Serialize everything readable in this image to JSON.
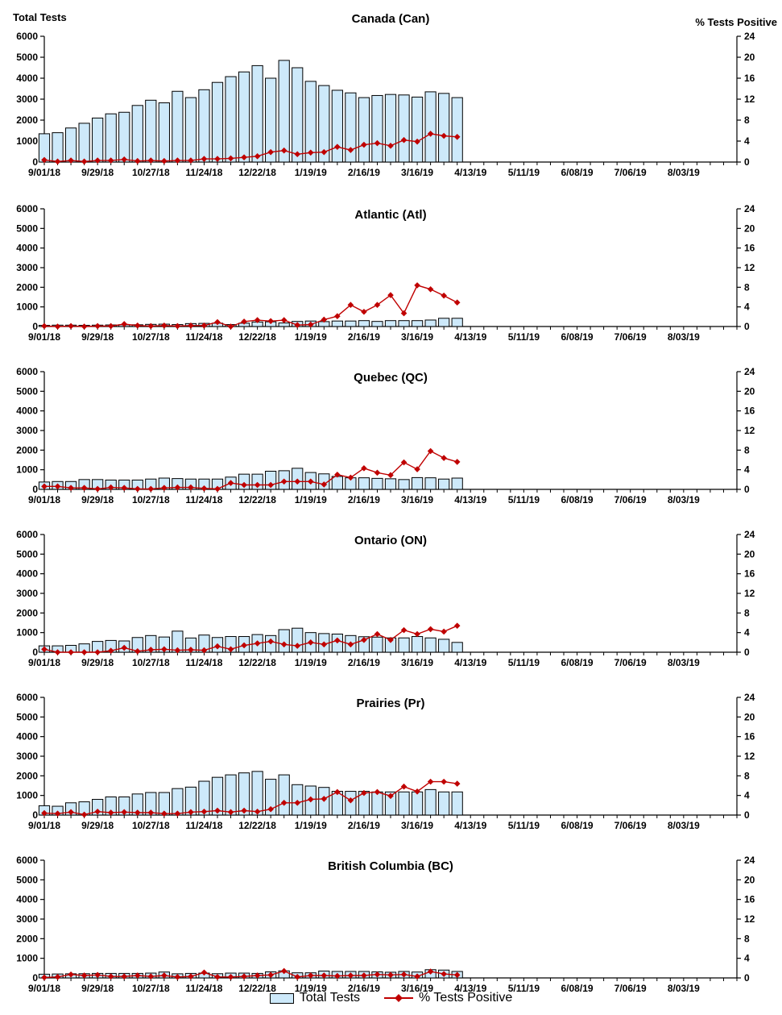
{
  "page": {
    "left_axis_title": "Total Tests",
    "right_axis_title": "% Tests Positive"
  },
  "legend": {
    "total_tests_label": "Total Tests",
    "pct_positive_label": "% Tests Positive"
  },
  "colors": {
    "bar_fill": "#CDE9FA",
    "bar_stroke": "#000000",
    "line": "#C00000",
    "axis": "#000000"
  },
  "axes": {
    "y_left": {
      "min": 0,
      "max": 6000,
      "step": 1000,
      "ticks": [
        0,
        1000,
        2000,
        3000,
        4000,
        5000,
        6000
      ]
    },
    "y_right": {
      "min": 0,
      "max": 24,
      "step": 4,
      "ticks": [
        0,
        4,
        8,
        12,
        16,
        20,
        24
      ]
    },
    "x": {
      "weeks_total": 53,
      "label_every": 4,
      "tick_labels": [
        "9/01/18",
        "9/29/18",
        "10/27/18",
        "11/24/18",
        "12/22/18",
        "1/19/19",
        "2/16/19",
        "3/16/19",
        "4/13/19",
        "5/11/19",
        "6/08/19",
        "7/06/19",
        "8/03/19"
      ]
    }
  },
  "chart_data": [
    {
      "id": "canada",
      "type": "bar+line",
      "title": "Canada (Can)",
      "categories": [
        "9/01/18",
        "9/08/18",
        "9/15/18",
        "9/22/18",
        "9/29/18",
        "10/06/18",
        "10/13/18",
        "10/20/18",
        "10/27/18",
        "11/03/18",
        "11/10/18",
        "11/17/18",
        "11/24/18",
        "12/01/18",
        "12/08/18",
        "12/15/18",
        "12/22/18",
        "12/29/18",
        "1/05/19",
        "1/12/19",
        "1/19/19",
        "1/26/19",
        "2/02/19",
        "2/09/19",
        "2/16/19",
        "2/23/19",
        "3/02/19",
        "3/09/19",
        "3/16/19",
        "3/23/19",
        "3/30/19",
        "4/06/19"
      ],
      "series": [
        {
          "name": "Total Tests",
          "axis": "left",
          "type": "bar",
          "values": [
            1350,
            1400,
            1625,
            1850,
            2100,
            2300,
            2375,
            2700,
            2950,
            2825,
            3375,
            3075,
            3450,
            3800,
            4075,
            4300,
            4600,
            4000,
            4850,
            4500,
            3850,
            3650,
            3425,
            3300,
            3075,
            3175,
            3225,
            3200,
            3100,
            3350,
            3275,
            3075
          ]
        },
        {
          "name": "% Tests Positive",
          "axis": "right",
          "type": "line",
          "values": [
            0.4,
            0.1,
            0.3,
            0.1,
            0.3,
            0.3,
            0.5,
            0.2,
            0.3,
            0.2,
            0.3,
            0.3,
            0.6,
            0.6,
            0.7,
            0.9,
            1.1,
            1.9,
            2.2,
            1.5,
            1.8,
            1.9,
            2.9,
            2.3,
            3.3,
            3.6,
            3.1,
            4.2,
            3.9,
            5.4,
            5.0,
            4.8
          ]
        }
      ]
    },
    {
      "id": "atlantic",
      "type": "bar+line",
      "title": "Atlantic (Atl)",
      "categories": [
        "9/01/18",
        "9/08/18",
        "9/15/18",
        "9/22/18",
        "9/29/18",
        "10/06/18",
        "10/13/18",
        "10/20/18",
        "10/27/18",
        "11/03/18",
        "11/10/18",
        "11/17/18",
        "11/24/18",
        "12/01/18",
        "12/08/18",
        "12/15/18",
        "12/22/18",
        "12/29/18",
        "1/05/19",
        "1/12/19",
        "1/19/19",
        "1/26/19",
        "2/02/19",
        "2/09/19",
        "2/16/19",
        "2/23/19",
        "3/02/19",
        "3/09/19",
        "3/16/19",
        "3/23/19",
        "3/30/19",
        "4/06/19"
      ],
      "series": [
        {
          "name": "Total Tests",
          "axis": "left",
          "type": "bar",
          "values": [
            60,
            70,
            70,
            60,
            70,
            80,
            90,
            90,
            110,
            120,
            100,
            150,
            160,
            170,
            100,
            170,
            230,
            240,
            180,
            260,
            280,
            250,
            280,
            280,
            300,
            260,
            300,
            300,
            300,
            330,
            420,
            420
          ]
        },
        {
          "name": "% Tests Positive",
          "axis": "right",
          "type": "line",
          "values": [
            0.1,
            0,
            0.1,
            0,
            0.1,
            0.1,
            0.5,
            0.2,
            0.1,
            0.2,
            0.1,
            0.2,
            0.2,
            0.9,
            0,
            1.0,
            1.3,
            1.1,
            1.3,
            0.3,
            0.4,
            1.4,
            2.1,
            4.4,
            3.0,
            4.4,
            6.4,
            2.7,
            8.4,
            7.6,
            6.3,
            4.9
          ]
        }
      ]
    },
    {
      "id": "quebec",
      "type": "bar+line",
      "title": "Quebec (QC)",
      "categories": [
        "9/01/18",
        "9/08/18",
        "9/15/18",
        "9/22/18",
        "9/29/18",
        "10/06/18",
        "10/13/18",
        "10/20/18",
        "10/27/18",
        "11/03/18",
        "11/10/18",
        "11/17/18",
        "11/24/18",
        "12/01/18",
        "12/08/18",
        "12/15/18",
        "12/22/18",
        "12/29/18",
        "1/05/19",
        "1/12/19",
        "1/19/19",
        "1/26/19",
        "2/02/19",
        "2/09/19",
        "2/16/19",
        "2/23/19",
        "3/02/19",
        "3/09/19",
        "3/16/19",
        "3/23/19",
        "3/30/19",
        "4/06/19"
      ],
      "series": [
        {
          "name": "Total Tests",
          "axis": "left",
          "type": "bar",
          "values": [
            375,
            400,
            400,
            500,
            500,
            475,
            475,
            475,
            525,
            575,
            550,
            525,
            525,
            525,
            625,
            775,
            775,
            925,
            950,
            1075,
            860,
            790,
            660,
            590,
            590,
            560,
            540,
            500,
            600,
            590,
            525,
            575
          ]
        },
        {
          "name": "% Tests Positive",
          "axis": "right",
          "type": "line",
          "values": [
            0.6,
            0.6,
            0.3,
            0.3,
            0.1,
            0.4,
            0.3,
            0.1,
            0.1,
            0.3,
            0.4,
            0.4,
            0.2,
            0.1,
            1.3,
            0.9,
            0.9,
            0.9,
            1.6,
            1.6,
            1.6,
            1.0,
            3.0,
            2.4,
            4.3,
            3.4,
            2.9,
            5.5,
            4.1,
            7.8,
            6.4,
            5.6
          ]
        }
      ]
    },
    {
      "id": "ontario",
      "type": "bar+line",
      "title": "Ontario (ON)",
      "categories": [
        "9/01/18",
        "9/08/18",
        "9/15/18",
        "9/22/18",
        "9/29/18",
        "10/06/18",
        "10/13/18",
        "10/20/18",
        "10/27/18",
        "11/03/18",
        "11/10/18",
        "11/17/18",
        "11/24/18",
        "12/01/18",
        "12/08/18",
        "12/15/18",
        "12/22/18",
        "12/29/18",
        "1/05/19",
        "1/12/19",
        "1/19/19",
        "1/26/19",
        "2/02/19",
        "2/09/19",
        "2/16/19",
        "2/23/19",
        "3/02/19",
        "3/09/19",
        "3/16/19",
        "3/23/19",
        "3/30/19",
        "4/06/19"
      ],
      "series": [
        {
          "name": "Total Tests",
          "axis": "left",
          "type": "bar",
          "values": [
            325,
            325,
            350,
            425,
            550,
            600,
            575,
            750,
            850,
            775,
            1075,
            725,
            875,
            750,
            800,
            800,
            900,
            850,
            1150,
            1225,
            1000,
            950,
            925,
            850,
            790,
            770,
            730,
            730,
            800,
            730,
            660,
            500
          ]
        },
        {
          "name": "% Tests Positive",
          "axis": "right",
          "type": "line",
          "values": [
            0.6,
            0,
            0,
            0,
            0,
            0.3,
            0.9,
            0.2,
            0.5,
            0.6,
            0.4,
            0.5,
            0.4,
            1.2,
            0.6,
            1.4,
            1.8,
            2.2,
            1.6,
            1.3,
            2.0,
            1.6,
            2.4,
            1.6,
            2.5,
            3.7,
            2.5,
            4.5,
            3.7,
            4.7,
            4.2,
            5.4
          ]
        }
      ]
    },
    {
      "id": "prairies",
      "type": "bar+line",
      "title": "Prairies (Pr)",
      "categories": [
        "9/01/18",
        "9/08/18",
        "9/15/18",
        "9/22/18",
        "9/29/18",
        "10/06/18",
        "10/13/18",
        "10/20/18",
        "10/27/18",
        "11/03/18",
        "11/10/18",
        "11/17/18",
        "11/24/18",
        "12/01/18",
        "12/08/18",
        "12/15/18",
        "12/22/18",
        "12/29/18",
        "1/05/19",
        "1/12/19",
        "1/19/19",
        "1/26/19",
        "2/02/19",
        "2/09/19",
        "2/16/19",
        "2/23/19",
        "3/02/19",
        "3/09/19",
        "3/16/19",
        "3/23/19",
        "3/30/19",
        "4/06/19"
      ],
      "series": [
        {
          "name": "Total Tests",
          "axis": "left",
          "type": "bar",
          "values": [
            475,
            450,
            625,
            675,
            800,
            925,
            925,
            1075,
            1150,
            1150,
            1350,
            1425,
            1725,
            1925,
            2050,
            2150,
            2225,
            1825,
            2050,
            1550,
            1480,
            1410,
            1210,
            1210,
            1210,
            1180,
            1180,
            1180,
            1180,
            1300,
            1180,
            1180
          ]
        },
        {
          "name": "% Tests Positive",
          "axis": "right",
          "type": "line",
          "values": [
            0.4,
            0.3,
            0.6,
            0.1,
            0.7,
            0.5,
            0.6,
            0.5,
            0.5,
            0.3,
            0.3,
            0.6,
            0.7,
            0.9,
            0.6,
            0.9,
            0.7,
            1.2,
            2.5,
            2.5,
            3.2,
            3.3,
            4.7,
            3.0,
            4.5,
            4.7,
            3.9,
            5.8,
            4.8,
            6.8,
            6.8,
            6.4
          ]
        }
      ]
    },
    {
      "id": "bc",
      "type": "bar+line",
      "title": "British Columbia (BC)",
      "categories": [
        "9/01/18",
        "9/08/18",
        "9/15/18",
        "9/22/18",
        "9/29/18",
        "10/06/18",
        "10/13/18",
        "10/20/18",
        "10/27/18",
        "11/03/18",
        "11/10/18",
        "11/17/18",
        "11/24/18",
        "12/01/18",
        "12/08/18",
        "12/15/18",
        "12/22/18",
        "12/29/18",
        "1/05/19",
        "1/12/19",
        "1/19/19",
        "1/26/19",
        "2/02/19",
        "2/09/19",
        "2/16/19",
        "2/23/19",
        "3/02/19",
        "3/09/19",
        "3/16/19",
        "3/23/19",
        "3/30/19",
        "4/06/19"
      ],
      "series": [
        {
          "name": "Total Tests",
          "axis": "left",
          "type": "bar",
          "values": [
            190,
            200,
            210,
            215,
            230,
            230,
            230,
            230,
            245,
            300,
            210,
            230,
            245,
            215,
            245,
            245,
            230,
            310,
            360,
            260,
            260,
            350,
            330,
            330,
            330,
            310,
            290,
            330,
            300,
            420,
            400,
            330
          ]
        },
        {
          "name": "% Tests Positive",
          "axis": "right",
          "type": "line",
          "values": [
            0.1,
            0.2,
            0.7,
            0.5,
            0.6,
            0.3,
            0.3,
            0.5,
            0.3,
            0.5,
            0.2,
            0.3,
            1.1,
            0.2,
            0.2,
            0.3,
            0.5,
            0.6,
            1.4,
            0.2,
            0.5,
            0.5,
            0.4,
            0.5,
            0.5,
            0.7,
            0.6,
            0.7,
            0.3,
            1.3,
            0.8,
            0.6
          ]
        }
      ]
    }
  ]
}
